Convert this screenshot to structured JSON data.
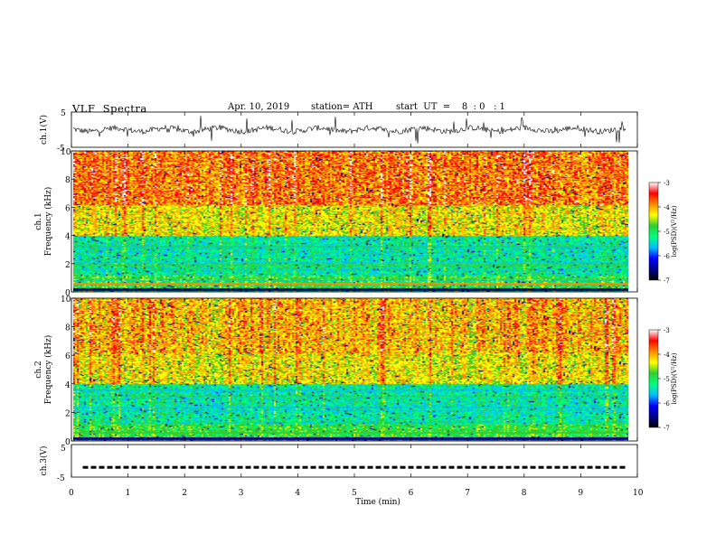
{
  "header": {
    "title": "VLF  Spectra",
    "date": "Apr. 10, 2019",
    "station": "station= ATH",
    "start": "start  UT  =    8  : 0   : 1"
  },
  "chart_data": [
    {
      "type": "line",
      "panel": "ch1-waveform",
      "ylabel": "ch.1(V)",
      "ylim": [
        -5,
        5
      ],
      "yticks": [
        "5",
        "-5"
      ],
      "xlim": [
        0,
        10
      ],
      "series_note": "continuous noisy waveform around 0 V, spikes up to about ±4 V",
      "x": [
        0,
        0.5,
        1,
        1.5,
        2,
        2.5,
        3,
        3.5,
        4,
        4.5,
        5,
        5.5,
        6,
        6.5,
        7,
        7.5,
        8,
        8.5,
        9,
        9.5,
        9.8
      ],
      "y": [
        0.3,
        -0.8,
        0.5,
        0.2,
        -0.4,
        0.1,
        0.3,
        -0.2,
        0.4,
        -0.1,
        -0.5,
        0.2,
        -0.3,
        0.4,
        0.1,
        -0.2,
        0.3,
        -0.4,
        0.2,
        -0.3,
        0.1
      ]
    },
    {
      "type": "heatmap",
      "panel": "ch1-spectrogram",
      "ylabel_top": "ch.1",
      "ylabel": "Frequency  (kHz)",
      "ylim": [
        0,
        10
      ],
      "yticks": [
        "0",
        "2",
        "4",
        "6",
        "8",
        "10"
      ],
      "xlim": [
        0,
        9.8
      ],
      "colorbar": {
        "label": "log(PSD)(V²/Hz)",
        "range": [
          -7,
          -3
        ],
        "ticks": [
          "-3",
          "-4",
          "-5",
          "-6",
          "-7"
        ]
      }
    },
    {
      "type": "heatmap",
      "panel": "ch2-spectrogram",
      "ylabel_top": "ch.2",
      "ylabel": "Frequency  (kHz)",
      "ylim": [
        0,
        10
      ],
      "yticks": [
        "0",
        "2",
        "4",
        "6",
        "8",
        "10"
      ],
      "xlim": [
        0,
        9.8
      ],
      "colorbar": {
        "label": "log(PSD)(V²/Hz)",
        "range": [
          -7,
          -3
        ],
        "ticks": [
          "-3",
          "-4",
          "-5",
          "-6",
          "-7"
        ]
      }
    },
    {
      "type": "line",
      "panel": "ch3-trace",
      "ylabel": "ch.3(V)",
      "ylim": [
        -5,
        5
      ],
      "yticks": [
        "5",
        "0",
        "-5"
      ],
      "xlim": [
        0,
        10
      ],
      "series_note": "dashed trace near -2 V",
      "x": [
        0.2,
        9.8
      ],
      "y": [
        -2,
        -2
      ]
    }
  ],
  "x_axis": {
    "label": "Time  (min)",
    "ticks": [
      "0",
      "1",
      "2",
      "3",
      "4",
      "5",
      "6",
      "7",
      "8",
      "9",
      "10"
    ],
    "range": [
      0,
      10
    ]
  },
  "colormap": [
    "#000000",
    "#00008b",
    "#0000ff",
    "#00bfff",
    "#00ff7f",
    "#32cd32",
    "#ffff00",
    "#ff8c00",
    "#ff0000",
    "#ffffff"
  ]
}
